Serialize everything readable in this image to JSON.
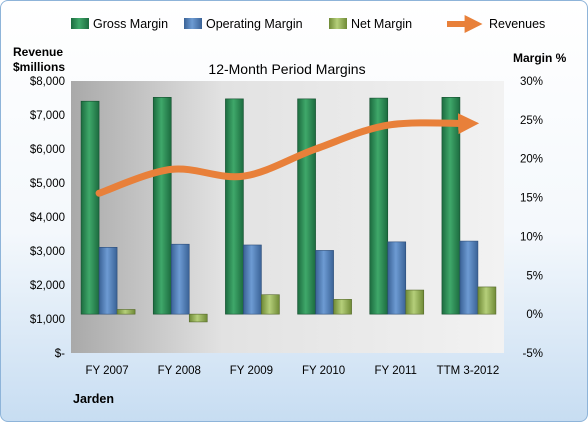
{
  "chart_data": {
    "type": "bar",
    "title": "12-Month Period Margins",
    "company": "Jarden",
    "categories": [
      "FY 2007",
      "FY 2008",
      "FY 2009",
      "FY 2010",
      "FY 2011",
      "TTM 3-2012"
    ],
    "left_axis": {
      "label_line1": "Revenue",
      "label_line2": "$millions",
      "min": 0,
      "max": 8000,
      "step": 1000,
      "tick_labels": [
        "$-",
        "$1,000",
        "$2,000",
        "$3,000",
        "$4,000",
        "$5,000",
        "$6,000",
        "$7,000",
        "$8,000"
      ]
    },
    "right_axis": {
      "label": "Margin %",
      "min": -5,
      "max": 30,
      "step": 5,
      "tick_labels": [
        "-5%",
        "0%",
        "5%",
        "10%",
        "15%",
        "20%",
        "25%",
        "30%"
      ]
    },
    "series": [
      {
        "name": "Gross Margin",
        "axis": "right",
        "kind": "bar",
        "color": "#2e8b57",
        "values": [
          27.4,
          27.9,
          27.7,
          27.7,
          27.8,
          27.9
        ]
      },
      {
        "name": "Operating Margin",
        "axis": "right",
        "kind": "bar",
        "color": "#4f81bd",
        "values": [
          8.6,
          9.0,
          8.9,
          8.2,
          9.3,
          9.4
        ]
      },
      {
        "name": "Net Margin",
        "axis": "right",
        "kind": "bar",
        "color": "#9bbb59",
        "values": [
          0.6,
          -1.0,
          2.5,
          1.9,
          3.1,
          3.5
        ]
      },
      {
        "name": "Revenues",
        "axis": "left",
        "kind": "line",
        "color": "#e8803a",
        "values": [
          4700,
          5400,
          5200,
          6000,
          6700,
          6750
        ]
      }
    ],
    "legend_position": "top",
    "grid": false
  }
}
